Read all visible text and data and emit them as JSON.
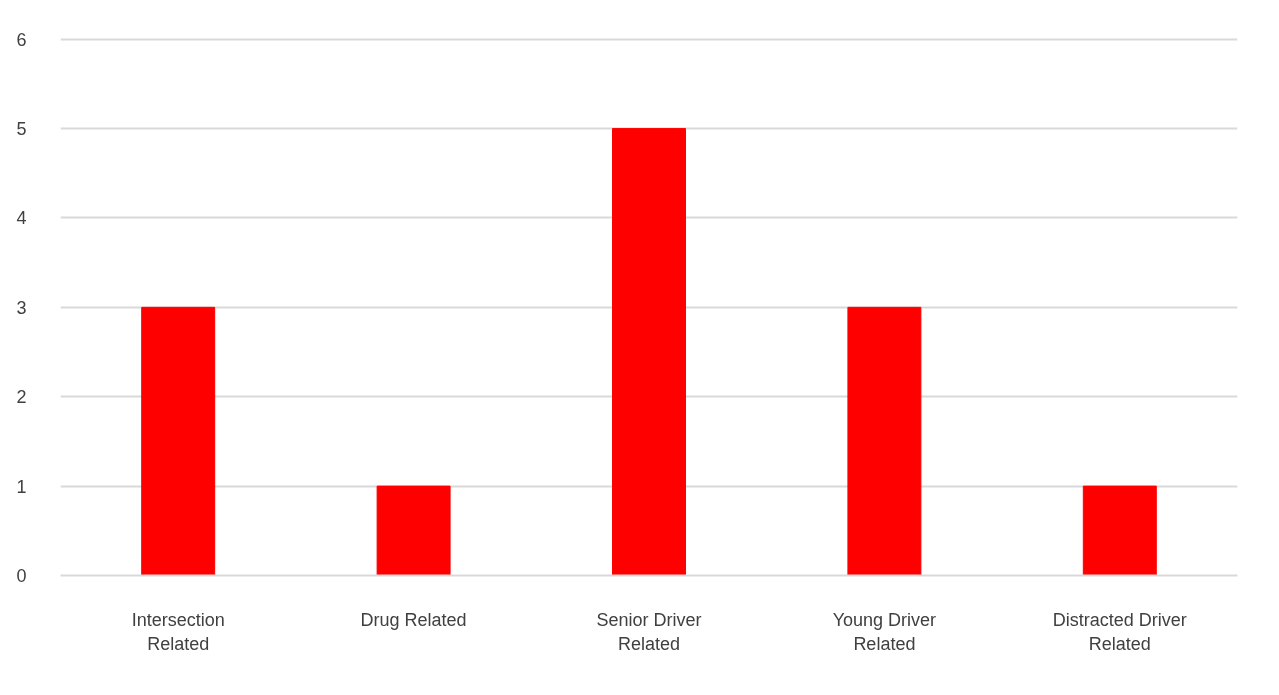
{
  "chart_data": {
    "type": "bar",
    "categories": [
      "Intersection Related",
      "Drug Related",
      "Senior Driver Related",
      "Young Driver Related",
      "Distracted Driver Related"
    ],
    "values": [
      3,
      1,
      5,
      3,
      1
    ],
    "color": "#ff0000",
    "ylim": [
      0,
      6
    ],
    "yticks": [
      0,
      1,
      2,
      3,
      4,
      5,
      6
    ],
    "grid": "y"
  }
}
